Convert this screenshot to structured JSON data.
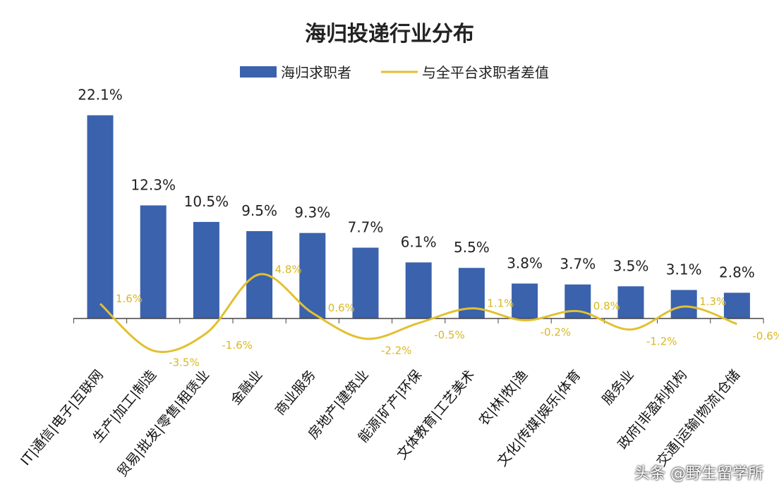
{
  "chart_data": {
    "type": "bar",
    "title": "海归投递行业分布",
    "categories": [
      "IT|通信|电子|互联网",
      "生产|加工|制造",
      "贸易|批发|零售|租赁业",
      "金融业",
      "商业服务",
      "房地产|建筑业",
      "能源|矿产|环保",
      "文体教育|工艺美术",
      "农|林|牧|渔",
      "文化|传媒|娱乐|体育",
      "服务业",
      "政府|非盈利机构",
      "交通|运输|物流|仓储"
    ],
    "series": [
      {
        "name": "海归求职者",
        "type": "bar",
        "color": "#3a62ad",
        "values": [
          22.1,
          12.3,
          10.5,
          9.5,
          9.3,
          7.7,
          6.1,
          5.5,
          3.8,
          3.7,
          3.5,
          3.1,
          2.8
        ],
        "labels": [
          "22.1%",
          "12.3%",
          "10.5%",
          "9.5%",
          "9.3%",
          "7.7%",
          "6.1%",
          "5.5%",
          "3.8%",
          "3.7%",
          "3.5%",
          "3.1%",
          "2.8%"
        ]
      },
      {
        "name": "与全平台求职者差值",
        "type": "line",
        "smooth": true,
        "color": "#e2c030",
        "values": [
          1.6,
          -3.5,
          -1.6,
          4.8,
          0.6,
          -2.2,
          -0.5,
          1.1,
          -0.2,
          0.8,
          -1.2,
          1.3,
          -0.6
        ],
        "labels": [
          "1.6%",
          "-3.5%",
          "-1.6%",
          "4.8%",
          "0.6%",
          "-2.2%",
          "-0.5%",
          "1.1%",
          "-0.2%",
          "0.8%",
          "-1.2%",
          "1.3%",
          "-0.6%"
        ]
      }
    ],
    "ylim": [
      -4,
      23
    ],
    "grid": false,
    "legend": "top"
  },
  "watermark": "头条 @野生留学所"
}
